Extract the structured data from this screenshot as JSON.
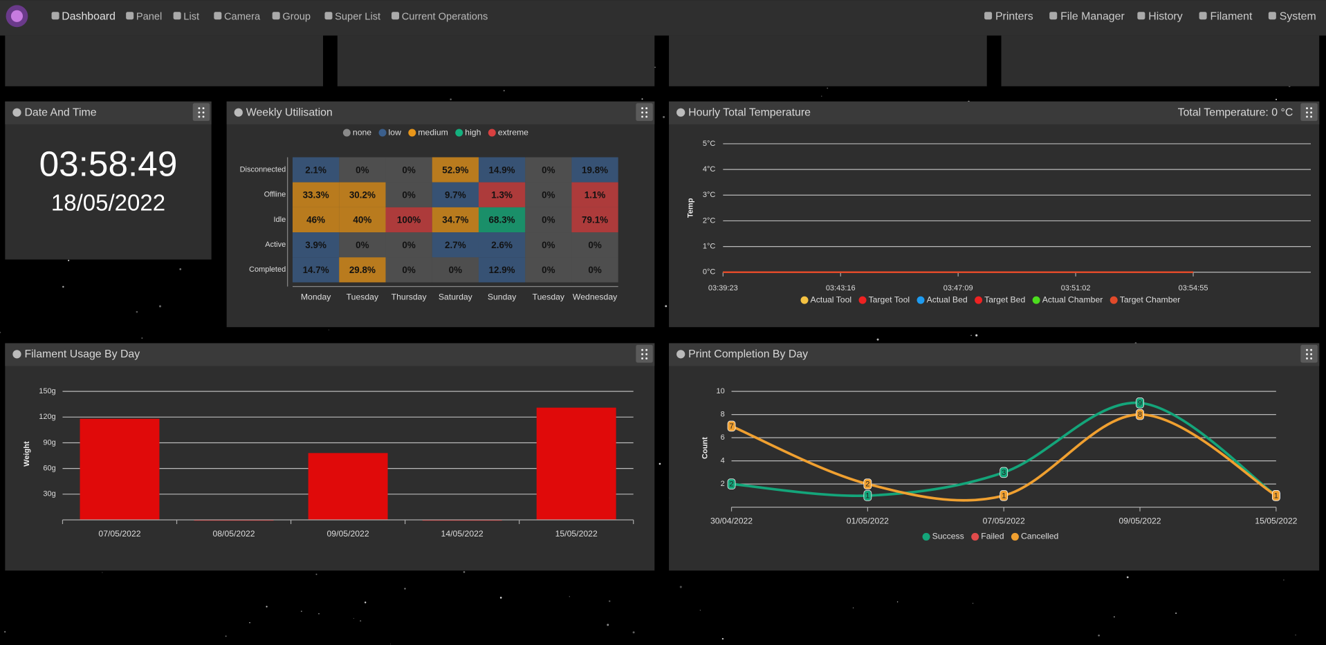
{
  "nav": {
    "left": [
      "Dashboard",
      "Panel",
      "List",
      "Camera",
      "Group",
      "Super List",
      "Current Operations"
    ],
    "right": [
      "Printers",
      "File Manager",
      "History",
      "Filament",
      "System"
    ]
  },
  "clock": {
    "title": "Date And Time",
    "time": "03:58:49",
    "date": "18/05/2022"
  },
  "chart_data": [
    {
      "type": "heatmap",
      "title": "Weekly Utilisation",
      "legend": [
        {
          "name": "none",
          "color": "#8a8a8a"
        },
        {
          "name": "low",
          "color": "#3b5f8c"
        },
        {
          "name": "medium",
          "color": "#e8961a"
        },
        {
          "name": "high",
          "color": "#14b07e"
        },
        {
          "name": "extreme",
          "color": "#d84040"
        }
      ],
      "rows": [
        "Disconnected",
        "Offline",
        "Idle",
        "Active",
        "Completed"
      ],
      "categories": [
        "Monday",
        "Tuesday",
        "Thursday",
        "Saturday",
        "Sunday",
        "Tuesday",
        "Wednesday"
      ],
      "values": [
        [
          2.1,
          0,
          0,
          52.9,
          14.9,
          0,
          19.8
        ],
        [
          33.3,
          30.2,
          0,
          9.7,
          1.3,
          0,
          1.1
        ],
        [
          46,
          40,
          100,
          34.7,
          68.3,
          0,
          79.1
        ],
        [
          3.9,
          0,
          0,
          2.7,
          2.6,
          0,
          0
        ],
        [
          14.7,
          29.8,
          0,
          0,
          12.9,
          0,
          0
        ]
      ],
      "value_labels": [
        [
          "2.1%",
          "0%",
          "0%",
          "52.9%",
          "14.9%",
          "0%",
          "19.8%"
        ],
        [
          "33.3%",
          "30.2%",
          "0%",
          "9.7%",
          "1.3%",
          "0%",
          "1.1%"
        ],
        [
          "46%",
          "40%",
          "100%",
          "34.7%",
          "68.3%",
          "0%",
          "79.1%"
        ],
        [
          "3.9%",
          "0%",
          "0%",
          "2.7%",
          "2.6%",
          "0%",
          "0%"
        ],
        [
          "14.7%",
          "29.8%",
          "0%",
          "0%",
          "12.9%",
          "0%",
          "0%"
        ]
      ],
      "levels": [
        [
          "low",
          "none",
          "none",
          "medium",
          "low",
          "none",
          "low"
        ],
        [
          "medium",
          "medium",
          "none",
          "low",
          "extreme",
          "none",
          "extreme"
        ],
        [
          "medium",
          "medium",
          "extreme",
          "medium",
          "high",
          "none",
          "extreme"
        ],
        [
          "low",
          "none",
          "none",
          "low",
          "low",
          "none",
          "none"
        ],
        [
          "low",
          "medium",
          "none",
          "none",
          "low",
          "none",
          "none"
        ]
      ]
    },
    {
      "type": "line",
      "title": "Hourly Total Temperature",
      "annotation": "Total Temperature: 0 °C",
      "y_label": "Temp",
      "x": [
        "03:39:23",
        "03:43:16",
        "03:47:09",
        "03:51:02",
        "03:54:55"
      ],
      "ylim": [
        0,
        5
      ],
      "yticks": [
        {
          "value": 0,
          "label": "0°C"
        },
        {
          "value": 1,
          "label": "1°C"
        },
        {
          "value": 2,
          "label": "2°C"
        },
        {
          "value": 3,
          "label": "3°C"
        },
        {
          "value": 4,
          "label": "4°C"
        },
        {
          "value": 5,
          "label": "5°C"
        }
      ],
      "grid": true,
      "series": [
        {
          "name": "Actual Tool",
          "color": "#f5c242",
          "values": [
            0,
            0,
            0,
            0,
            0
          ]
        },
        {
          "name": "Target Tool",
          "color": "#ee2222",
          "values": [
            0,
            0,
            0,
            0,
            0
          ]
        },
        {
          "name": "Actual Bed",
          "color": "#1e9bf0",
          "values": [
            0,
            0,
            0,
            0,
            0
          ]
        },
        {
          "name": "Target Bed",
          "color": "#ee2222",
          "values": [
            0,
            0,
            0,
            0,
            0
          ]
        },
        {
          "name": "Actual Chamber",
          "color": "#4cdc1e",
          "values": [
            0,
            0,
            0,
            0,
            0
          ]
        },
        {
          "name": "Target Chamber",
          "color": "#e24a2a",
          "values": [
            0,
            0,
            0,
            0,
            0
          ]
        }
      ]
    },
    {
      "type": "bar",
      "title": "Filament Usage By Day",
      "y_label": "Weight",
      "color": "#e00a0a",
      "categories": [
        "07/05/2022",
        "08/05/2022",
        "09/05/2022",
        "14/05/2022",
        "15/05/2022"
      ],
      "values": [
        118,
        0,
        78,
        0,
        131
      ],
      "ylim": [
        0,
        150
      ],
      "yticks": [
        {
          "value": 30,
          "label": "30g"
        },
        {
          "value": 60,
          "label": "60g"
        },
        {
          "value": 90,
          "label": "90g"
        },
        {
          "value": 120,
          "label": "120g"
        },
        {
          "value": 150,
          "label": "150g"
        }
      ],
      "grid": true
    },
    {
      "type": "smooth-line",
      "title": "Print Completion By Day",
      "y_label": "Count",
      "categories": [
        "30/04/2022",
        "01/05/2022",
        "07/05/2022",
        "09/05/2022",
        "15/05/2022"
      ],
      "ylim": [
        0,
        10
      ],
      "yticks": [
        2,
        4,
        6,
        8,
        10
      ],
      "grid": true,
      "series": [
        {
          "name": "Success",
          "color": "#14a57a",
          "values": [
            2,
            1,
            3,
            9,
            1
          ]
        },
        {
          "name": "Failed",
          "color": "#e04b4b",
          "values": [
            null,
            null,
            null,
            null,
            null
          ]
        },
        {
          "name": "Cancelled",
          "color": "#f0a030",
          "values": [
            7,
            2,
            1,
            8,
            1
          ]
        }
      ]
    }
  ]
}
